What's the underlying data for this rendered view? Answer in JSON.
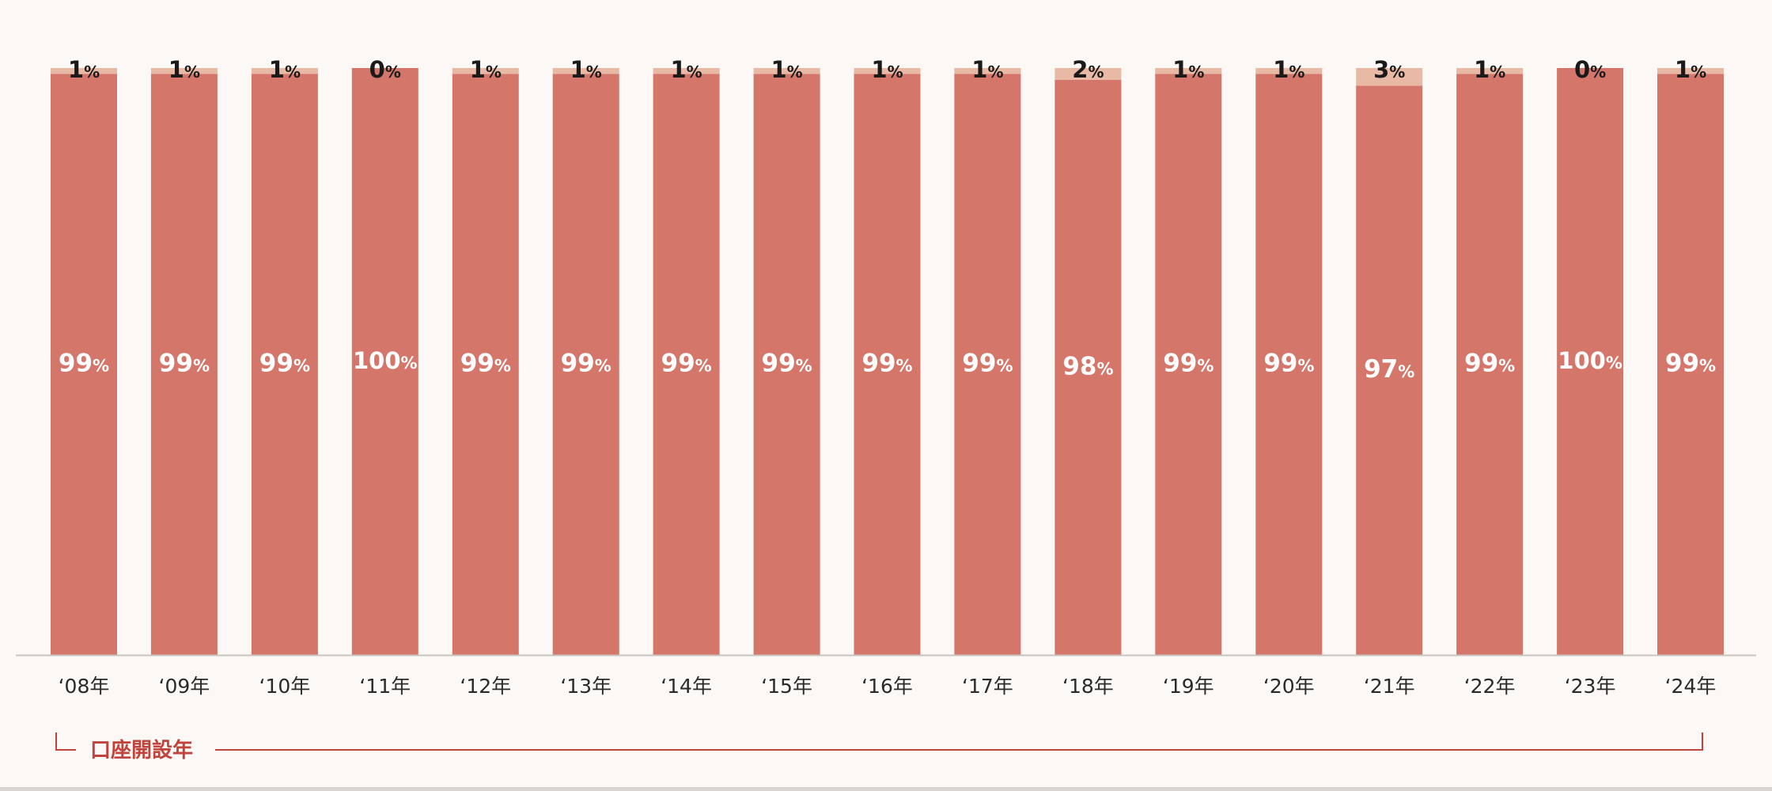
{
  "chart_data": {
    "type": "bar",
    "stacked": true,
    "percent": true,
    "categories": [
      "‘08年",
      "‘09年",
      "‘10年",
      "‘11年",
      "‘12年",
      "‘13年",
      "‘14年",
      "‘15年",
      "‘16年",
      "‘17年",
      "‘18年",
      "‘19年",
      "‘20年",
      "‘21年",
      "‘22年",
      "‘23年",
      "‘24年"
    ],
    "series": [
      {
        "values": [
          99,
          99,
          99,
          100,
          99,
          99,
          99,
          99,
          99,
          99,
          98,
          99,
          99,
          97,
          99,
          100,
          99
        ],
        "color": "#d4766a",
        "label_color": "#ffffff"
      },
      {
        "values": [
          1,
          1,
          1,
          0,
          1,
          1,
          1,
          1,
          1,
          1,
          2,
          1,
          1,
          3,
          1,
          0,
          1
        ],
        "color": "#e8b9a5",
        "label_color": "#1a1a1a"
      }
    ],
    "value_unit": "%",
    "ylim": [
      0,
      100
    ],
    "grid": false,
    "legend": "none",
    "xlabel": "口座開設年"
  },
  "colors": {
    "background": "#fcf8f5",
    "axis_line": "#c8c4c0",
    "bracket": "#c0443c",
    "xlabel_text": "#c0443c",
    "tick_text": "#2a2a2a"
  }
}
